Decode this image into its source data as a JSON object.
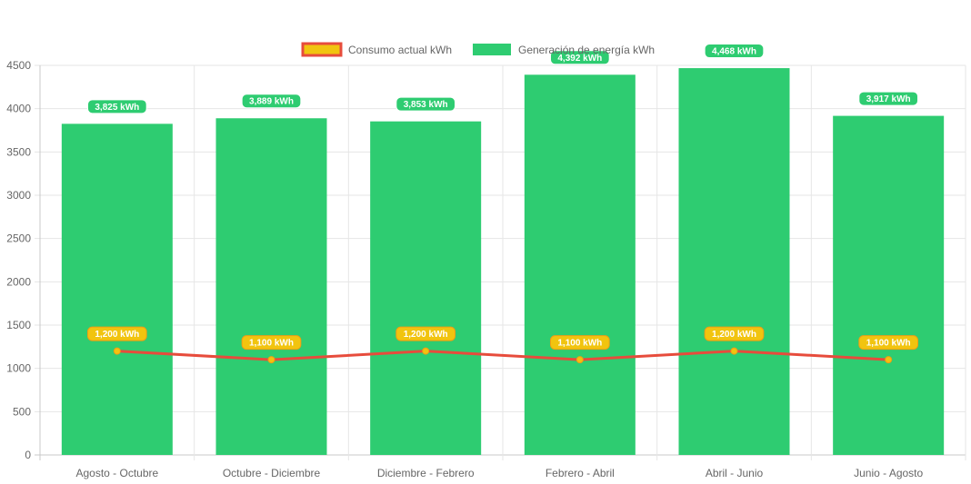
{
  "chart_data": {
    "type": "bar",
    "title": "",
    "xlabel": "",
    "ylabel": "",
    "ylim": [
      0,
      4500
    ],
    "y_ticks": [
      "0",
      "500",
      "1000",
      "1500",
      "2000",
      "2500",
      "3000",
      "3500",
      "4000",
      "4500"
    ],
    "grid": true,
    "legend_position": "top-center",
    "categories": [
      "Agosto - Octubre",
      "Octubre - Diciembre",
      "Diciembre - Febrero",
      "Febrero - Abril",
      "Abril - Junio",
      "Junio - Agosto"
    ],
    "series": [
      {
        "name": "Consumo actual kWh",
        "type": "line",
        "values": [
          1200,
          1100,
          1200,
          1100,
          1200,
          1100
        ],
        "labels": [
          "1,200 kWh",
          "1,100 kWh",
          "1,200 kWh",
          "1,100 kWh",
          "1,200 kWh",
          "1,100 kWh"
        ],
        "color": "#e74c3c",
        "label_color": "#f1c40f",
        "label_border": "#f39c12"
      },
      {
        "name": "Generación de energía kWh",
        "type": "bar",
        "values": [
          3825,
          3889,
          3853,
          4392,
          4468,
          3917
        ],
        "labels": [
          "3,825 kWh",
          "3,889 kWh",
          "3,853 kWh",
          "4,392 kWh",
          "4,468 kWh",
          "3,917 kWh"
        ],
        "color": "#2ecc71"
      }
    ],
    "legend": {
      "line_swatch_fill": "#f1c40f",
      "line_swatch_border": "#e74c3c"
    }
  }
}
